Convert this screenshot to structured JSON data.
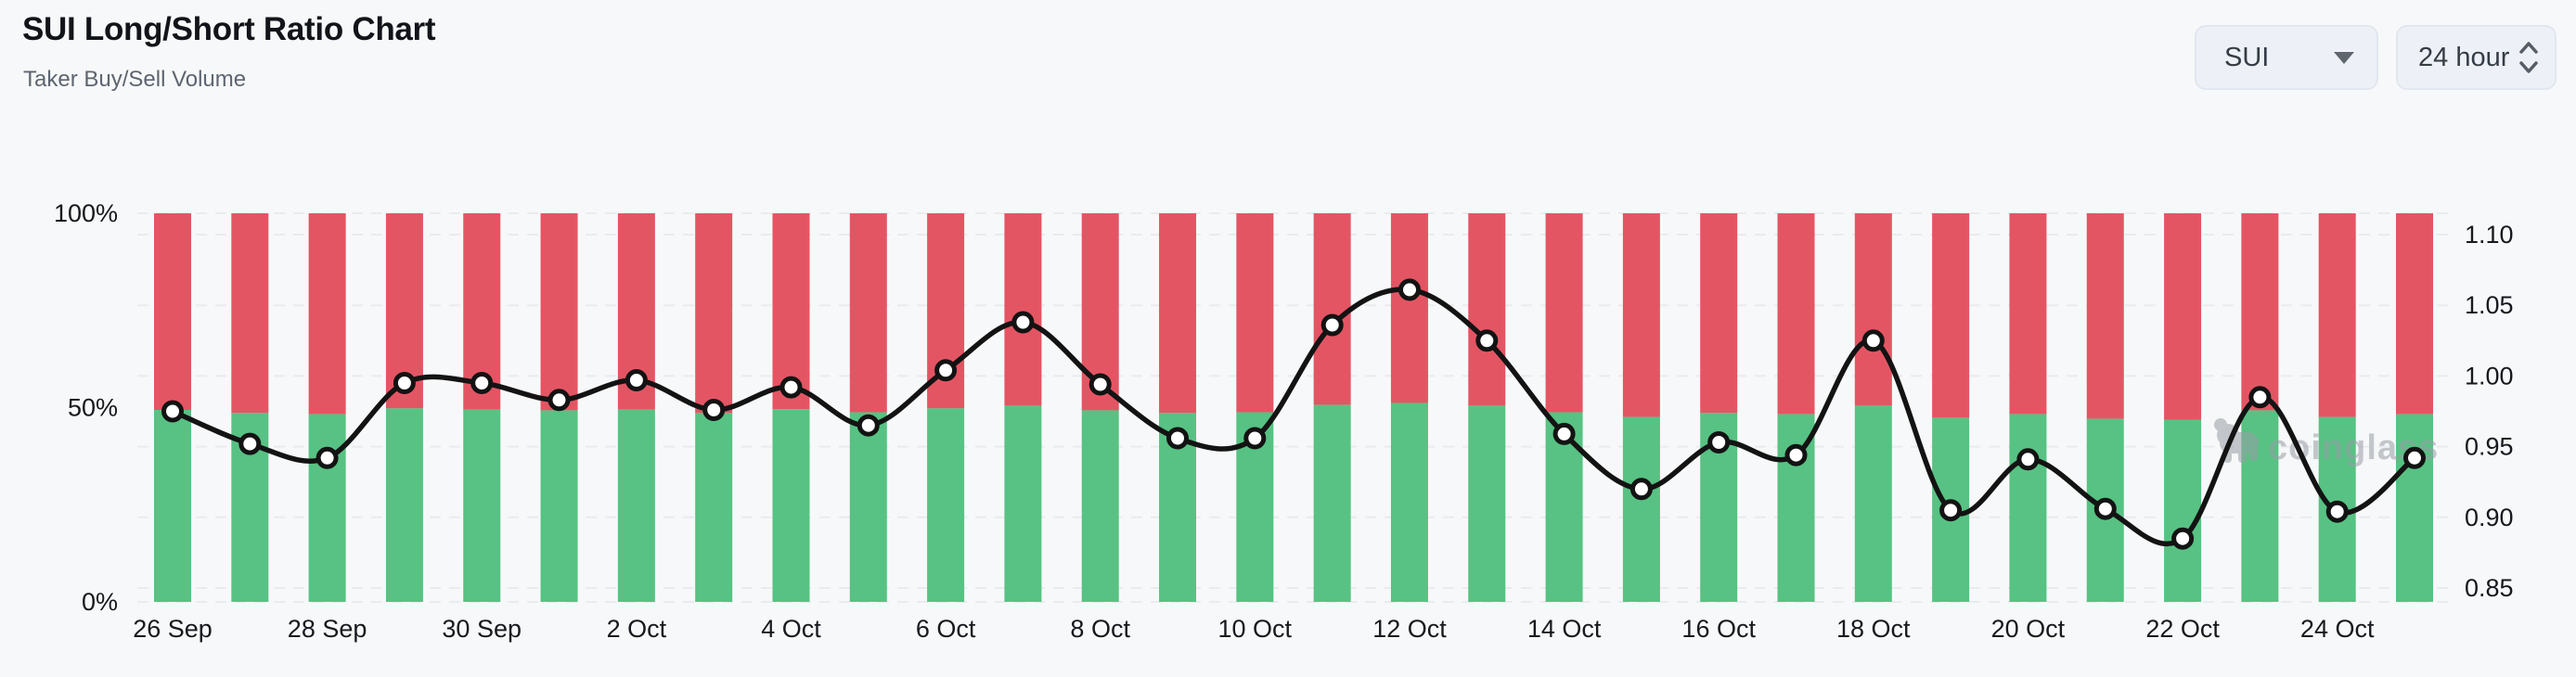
{
  "header": {
    "title": "SUI Long/Short Ratio Chart",
    "subtitle": "Taker Buy/Sell Volume"
  },
  "controls": {
    "symbol": {
      "value": "SUI",
      "icon": "caret-down-icon"
    },
    "interval": {
      "value": "24 hour",
      "icon": "chevron-up-down-icon"
    }
  },
  "watermark": {
    "text": "coinglass"
  },
  "chart_data": {
    "type": "bar",
    "subtype": "stacked-percent-bars-with-ratio-line",
    "title": "SUI Long/Short Ratio Chart",
    "categories": [
      "26 Sep",
      "27 Sep",
      "28 Sep",
      "29 Sep",
      "30 Sep",
      "1 Oct",
      "2 Oct",
      "3 Oct",
      "4 Oct",
      "5 Oct",
      "6 Oct",
      "7 Oct",
      "8 Oct",
      "9 Oct",
      "10 Oct",
      "11 Oct",
      "12 Oct",
      "13 Oct",
      "14 Oct",
      "15 Oct",
      "16 Oct",
      "17 Oct",
      "18 Oct",
      "19 Oct",
      "20 Oct",
      "21 Oct",
      "22 Oct",
      "23 Oct",
      "24 Oct",
      "25 Oct"
    ],
    "x_tick_labels": [
      "26 Sep",
      "28 Sep",
      "30 Sep",
      "2 Oct",
      "4 Oct",
      "6 Oct",
      "8 Oct",
      "10 Oct",
      "12 Oct",
      "14 Oct",
      "16 Oct",
      "18 Oct",
      "20 Oct",
      "22 Oct",
      "24 Oct"
    ],
    "series": [
      {
        "name": "Taker Buy Volume %",
        "type": "bar",
        "stack": "volume",
        "color": "#57c283",
        "values": [
          49.4,
          48.6,
          48.3,
          49.8,
          49.5,
          49.3,
          49.5,
          48.6,
          49.6,
          48.8,
          49.8,
          50.5,
          49.3,
          48.6,
          48.8,
          50.7,
          51.2,
          50.5,
          48.8,
          47.6,
          48.6,
          48.3,
          50.5,
          47.4,
          48.3,
          47.1,
          46.9,
          49.3,
          47.6,
          48.3
        ]
      },
      {
        "name": "Taker Sell Volume %",
        "type": "bar",
        "stack": "volume",
        "color": "#e45564",
        "values": [
          50.6,
          51.4,
          51.7,
          50.2,
          50.5,
          50.7,
          50.5,
          51.4,
          50.4,
          51.2,
          50.2,
          49.5,
          50.7,
          51.4,
          51.2,
          49.3,
          48.8,
          49.5,
          51.2,
          52.4,
          51.4,
          51.7,
          49.5,
          52.6,
          51.7,
          52.9,
          53.1,
          50.7,
          52.4,
          51.7
        ]
      },
      {
        "name": "Long/Short Ratio",
        "type": "line",
        "color": "#131313",
        "marker": "white-circle",
        "values": [
          0.975,
          0.952,
          0.942,
          0.995,
          0.995,
          0.983,
          0.997,
          0.976,
          0.992,
          0.965,
          1.004,
          1.038,
          0.994,
          0.956,
          0.956,
          1.036,
          1.061,
          1.025,
          0.959,
          0.92,
          0.953,
          0.944,
          1.025,
          0.905,
          0.941,
          0.906,
          0.885,
          0.985,
          0.904,
          0.942
        ]
      }
    ],
    "left_axis": {
      "range": [
        0,
        100
      ],
      "ticks": [
        {
          "label": "100%",
          "value": 100,
          "gridline": true
        },
        {
          "label": "50%",
          "value": 50,
          "gridline": false
        },
        {
          "label": "0%",
          "value": 0,
          "gridline": true
        }
      ]
    },
    "right_axis": {
      "range": [
        0.85,
        1.1
      ],
      "ticks": [
        "1.10",
        "1.05",
        "1.00",
        "0.95",
        "0.90",
        "0.85"
      ]
    },
    "grid": {
      "horizontal_dashed": true,
      "color": "#e9ebee"
    },
    "legend": "none"
  }
}
